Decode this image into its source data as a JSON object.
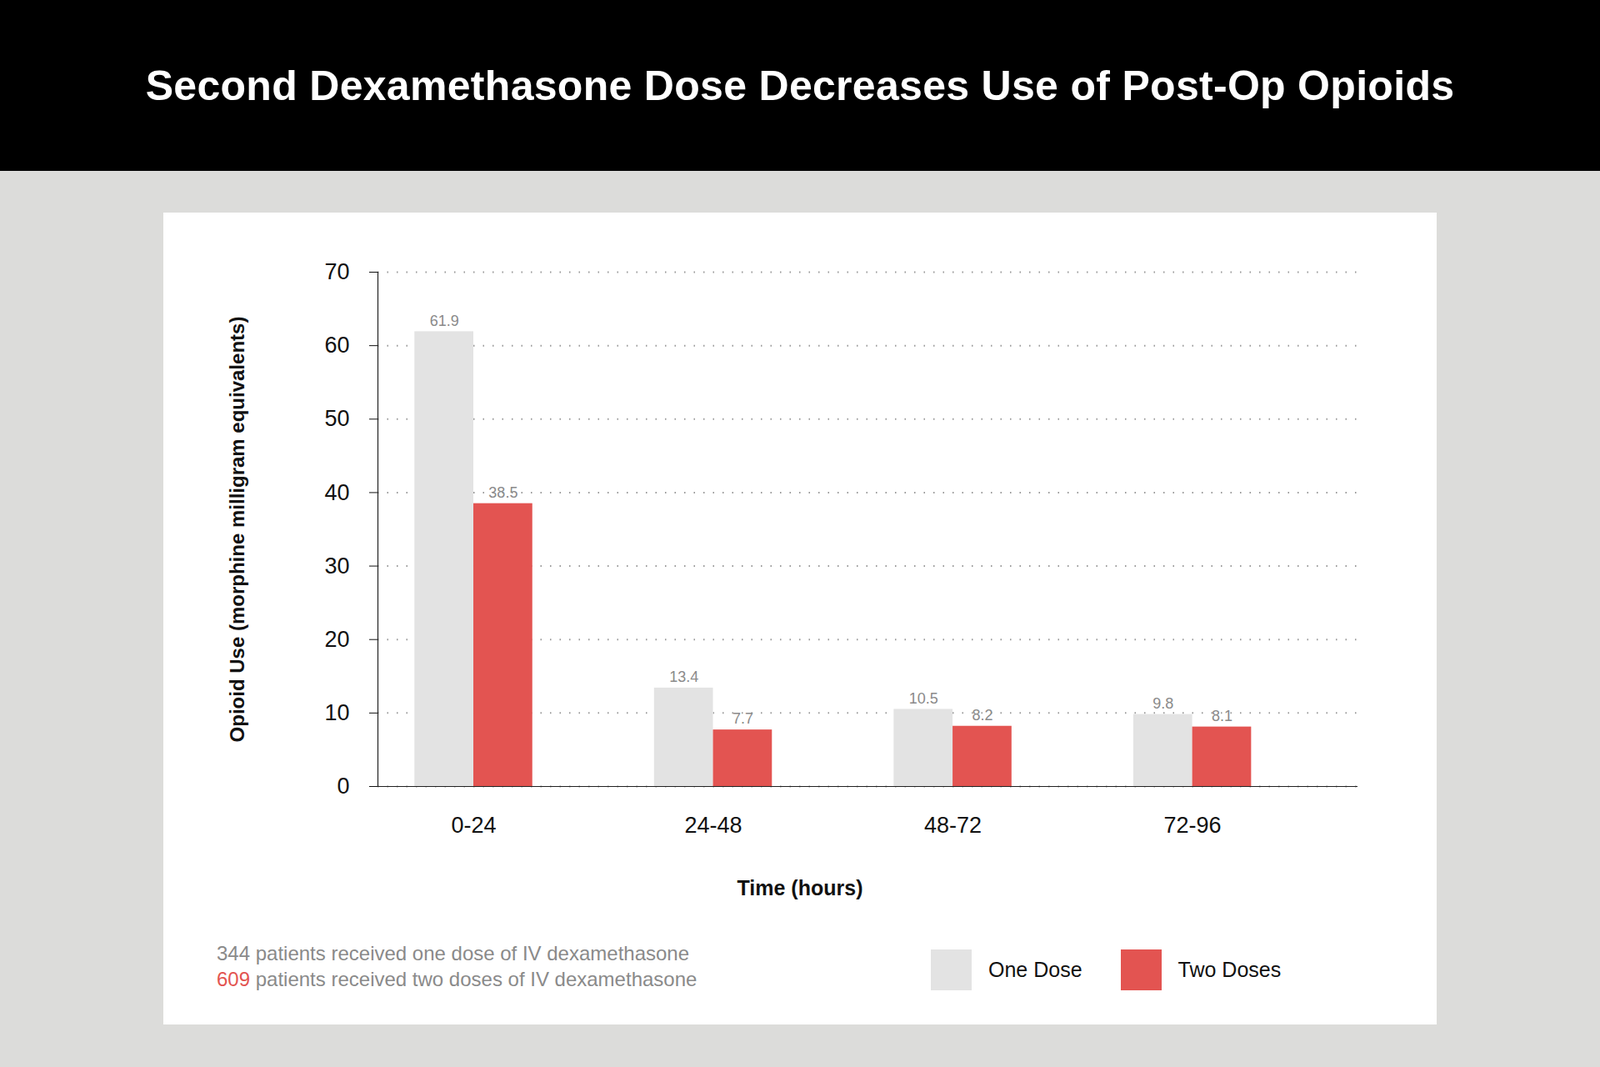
{
  "chart_data": {
    "type": "bar",
    "title": "Second Dexamethasone Dose Decreases Use of Post-Op Opioids",
    "x_label": "Time (hours)",
    "y_label": "Opioid Use (morphine milligram equivalents)",
    "categories": [
      "0-24",
      "24-48",
      "48-72",
      "72-96"
    ],
    "series": [
      {
        "name": "One Dose",
        "color": "#e3e3e3",
        "values": [
          61.9,
          13.4,
          10.5,
          9.8
        ]
      },
      {
        "name": "Two Doses",
        "color": "#e35451",
        "values": [
          38.5,
          7.7,
          8.2,
          8.1
        ]
      }
    ],
    "ylim": [
      0,
      70
    ],
    "yticks": [
      0,
      10,
      20,
      30,
      40,
      50,
      60,
      70
    ],
    "grid": true,
    "data_labels": true,
    "legend": "lower right",
    "notes": [
      "344 patients received one dose of IV dexamethasone",
      "609 patients received two doses of IV dexamethasone"
    ]
  }
}
